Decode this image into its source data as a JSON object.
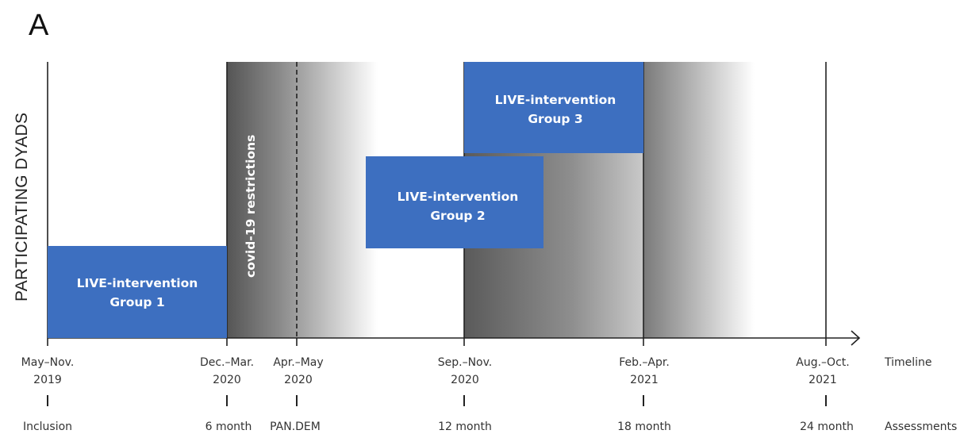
{
  "panel_label": "A",
  "y_axis_label": "PARTICIPATING DYADS",
  "covid_label": "covid-19 restrictions",
  "groups": [
    {
      "line1": "LIVE-intervention",
      "line2": "Group 1"
    },
    {
      "line1": "LIVE-intervention",
      "line2": "Group 2"
    },
    {
      "line1": "LIVE-intervention",
      "line2": "Group 3"
    }
  ],
  "row_labels": {
    "timeline": "Timeline",
    "assessments": "Assessments"
  },
  "timeline": [
    {
      "period": "May–Nov.",
      "year": "2019",
      "assessment": "Inclusion"
    },
    {
      "period": "Dec.–Mar.",
      "year": "2020",
      "assessment": "6 month"
    },
    {
      "period": "Apr.–May",
      "year": "2020",
      "assessment": "PAN.DEM"
    },
    {
      "period": "Sep.–Nov.",
      "year": "2020",
      "assessment": "12 month"
    },
    {
      "period": "Feb.–Apr.",
      "year": "2021",
      "assessment": "18 month"
    },
    {
      "period": "Aug.–Oct.",
      "year": "2021",
      "assessment": "24 month"
    }
  ],
  "colors": {
    "box_blue": "#3d6fc0",
    "axis": "#222222",
    "gradient_dark": "#555555"
  }
}
